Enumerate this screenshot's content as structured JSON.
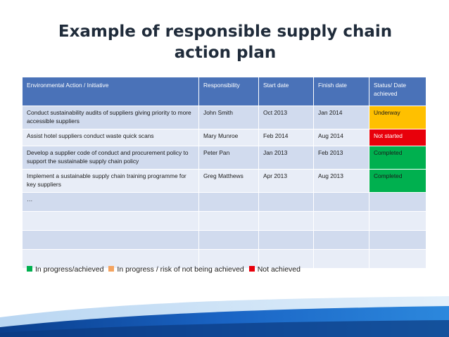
{
  "title": "Example of responsible supply chain action plan",
  "table": {
    "headers": [
      "Environmental Action / Initiative",
      "Responsibility",
      "Start date",
      "Finish date",
      "Status/ Date achieved"
    ],
    "rows": [
      {
        "action": "Conduct sustainability  audits of suppliers giving priority to more accessible suppliers",
        "responsibility": "John Smith",
        "start": "Oct 2013",
        "finish": "Jan 2014",
        "status": "Underway"
      },
      {
        "action": "Assist hotel suppliers conduct waste quick scans",
        "responsibility": "Mary Munroe",
        "start": "Feb 2014",
        "finish": "Aug 2014",
        "status": "Not started"
      },
      {
        "action": "Develop a supplier code of conduct and procurement policy to support the sustainable supply chain policy",
        "responsibility": "Peter Pan",
        "start": "Jan 2013",
        "finish": "Feb 2013",
        "status": "Completed"
      },
      {
        "action": "Implement a sustainable supply chain training programme for key suppliers",
        "responsibility": "Greg Matthews",
        "start": "Apr 2013",
        "finish": "Aug 2013",
        "status": "Completed"
      },
      {
        "action": "…",
        "responsibility": "",
        "start": "",
        "finish": "",
        "status": ""
      }
    ]
  },
  "status_colors": {
    "underway": "#ffc000",
    "not_started": "#e8000b",
    "completed": "#00b04f"
  },
  "legend": [
    {
      "label": "In progress/achieved",
      "color": "#00b04f"
    },
    {
      "label": "In progress / risk of not being achieved",
      "color": "#f4a460"
    },
    {
      "label": "Not achieved",
      "color": "#e8000b"
    }
  ]
}
